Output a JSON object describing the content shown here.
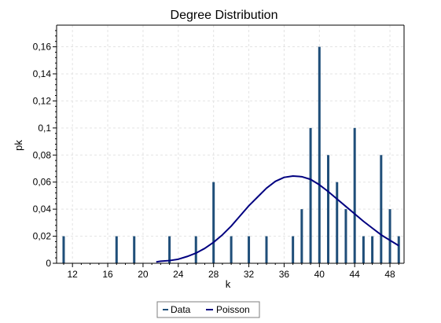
{
  "chart_data": {
    "type": "bar",
    "title": "Degree Distribution",
    "xlabel": "k",
    "ylabel": "pk",
    "xlim": [
      10.2,
      49.6
    ],
    "ylim": [
      0,
      0.176
    ],
    "x_ticks": [
      12,
      16,
      20,
      24,
      28,
      32,
      36,
      40,
      44,
      48
    ],
    "x_tick_labels": [
      "12",
      "16",
      "20",
      "24",
      "28",
      "32",
      "36",
      "40",
      "44",
      "48"
    ],
    "y_ticks": [
      0,
      0.02,
      0.04,
      0.06,
      0.08,
      0.1,
      0.12,
      0.14,
      0.16
    ],
    "y_tick_labels": [
      "0",
      "0,02",
      "0,04",
      "0,06",
      "0,08",
      "0,1",
      "0,12",
      "0,14",
      "0,16"
    ],
    "grid": true,
    "legend_position": "bottom-center",
    "series": [
      {
        "name": "Data",
        "type": "bar",
        "color": "#1f4e79",
        "x": [
          11,
          17,
          19,
          23,
          26,
          28,
          30,
          32,
          34,
          37,
          38,
          39,
          40,
          41,
          42,
          43,
          44,
          45,
          46,
          47,
          48,
          49
        ],
        "values": [
          0.02,
          0.02,
          0.02,
          0.02,
          0.02,
          0.06,
          0.02,
          0.02,
          0.02,
          0.02,
          0.04,
          0.1,
          0.16,
          0.08,
          0.06,
          0.04,
          0.1,
          0.02,
          0.02,
          0.08,
          0.04,
          0.02
        ]
      },
      {
        "name": "Poisson",
        "type": "line",
        "color": "#000080",
        "x": [
          21.5,
          22,
          23,
          24,
          25,
          26,
          27,
          28,
          29,
          30,
          31,
          32,
          33,
          34,
          35,
          36,
          37,
          38,
          39,
          40,
          41,
          42,
          43,
          44,
          45,
          46,
          47,
          48,
          49
        ],
        "values": [
          0.001,
          0.0015,
          0.002,
          0.003,
          0.005,
          0.0075,
          0.011,
          0.0155,
          0.021,
          0.0275,
          0.035,
          0.0425,
          0.049,
          0.0555,
          0.0605,
          0.0635,
          0.0645,
          0.064,
          0.062,
          0.058,
          0.053,
          0.0475,
          0.042,
          0.0365,
          0.031,
          0.026,
          0.021,
          0.017,
          0.013
        ]
      }
    ]
  }
}
